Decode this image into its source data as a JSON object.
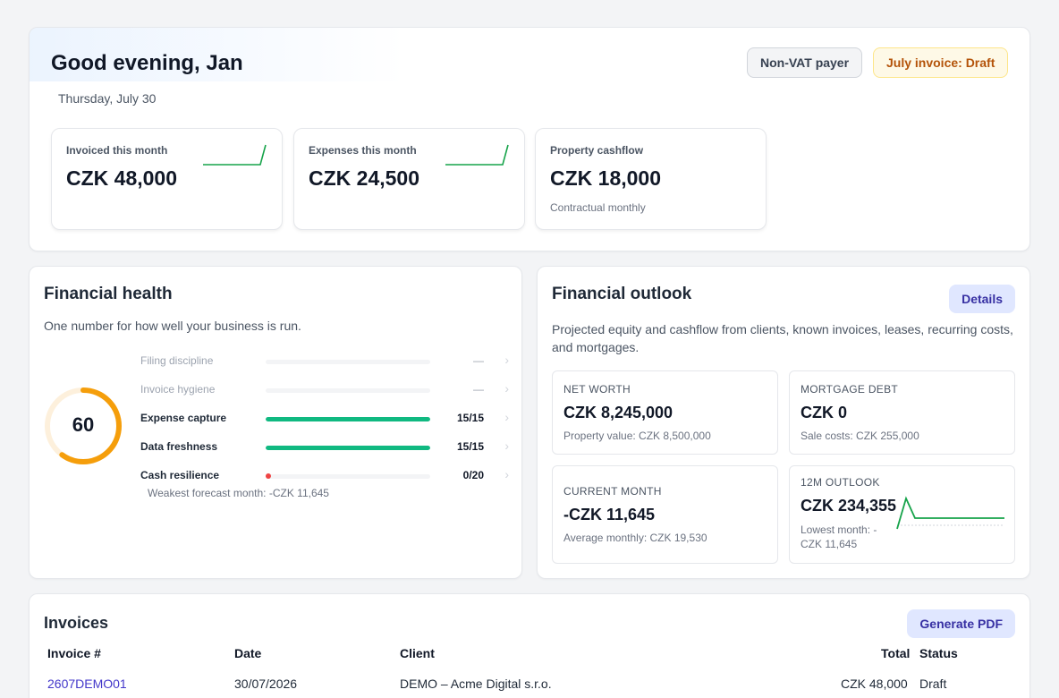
{
  "header": {
    "greeting": "Good evening, Jan",
    "date": "Thursday, July 30",
    "badges": {
      "vat": "Non-VAT payer",
      "invoice_status": "July invoice: Draft"
    }
  },
  "stats": [
    {
      "label": "Invoiced this month",
      "value": "CZK 48,000",
      "sub": ""
    },
    {
      "label": "Expenses this month",
      "value": "CZK 24,500",
      "sub": ""
    },
    {
      "label": "Property cashflow",
      "value": "CZK 18,000",
      "sub": "Contractual monthly"
    }
  ],
  "health": {
    "title": "Financial health",
    "description": "One number for how well your business is run.",
    "score": "60",
    "score_fraction": 0.6,
    "metrics": [
      {
        "label": "Filing discipline",
        "score": "—",
        "fraction": 0
      },
      {
        "label": "Invoice hygiene",
        "score": "—",
        "fraction": 0
      },
      {
        "label": "Expense capture",
        "score": "15/15",
        "fraction": 1
      },
      {
        "label": "Data freshness",
        "score": "15/15",
        "fraction": 1
      },
      {
        "label": "Cash resilience",
        "score": "0/20",
        "fraction": 0
      }
    ],
    "weakest": "Weakest forecast month: -CZK 11,645"
  },
  "outlook": {
    "title": "Financial outlook",
    "details_label": "Details",
    "description": "Projected equity and cashflow from clients, known invoices, leases, recurring costs, and mortgages.",
    "tiles": {
      "net_worth": {
        "label": "NET WORTH",
        "value": "CZK 8,245,000",
        "sub": "Property value: CZK 8,500,000"
      },
      "mortgage": {
        "label": "MORTGAGE DEBT",
        "value": "CZK 0",
        "sub": "Sale costs: CZK 255,000"
      },
      "current": {
        "label": "CURRENT MONTH",
        "value": "-CZK 11,645",
        "sub": "Average monthly: CZK 19,530"
      },
      "outlook": {
        "label": "12M OUTLOOK",
        "value": "CZK 234,355",
        "sub": "Lowest month: -CZK 11,645"
      }
    }
  },
  "invoices": {
    "title": "Invoices",
    "generate_label": "Generate PDF",
    "columns": [
      "Invoice #",
      "Date",
      "Client",
      "Total",
      "Status"
    ],
    "rows": [
      {
        "number": "2607DEMO01",
        "date": "30/07/2026",
        "client": "DEMO – Acme Digital s.r.o.",
        "total": "CZK 48,000",
        "status": "Draft"
      }
    ]
  },
  "colors": {
    "accent": "#10b981",
    "ring": "#f59e0b",
    "ring_track": "#fdf0dc",
    "link": "#4338ca",
    "danger": "#ef4444"
  }
}
